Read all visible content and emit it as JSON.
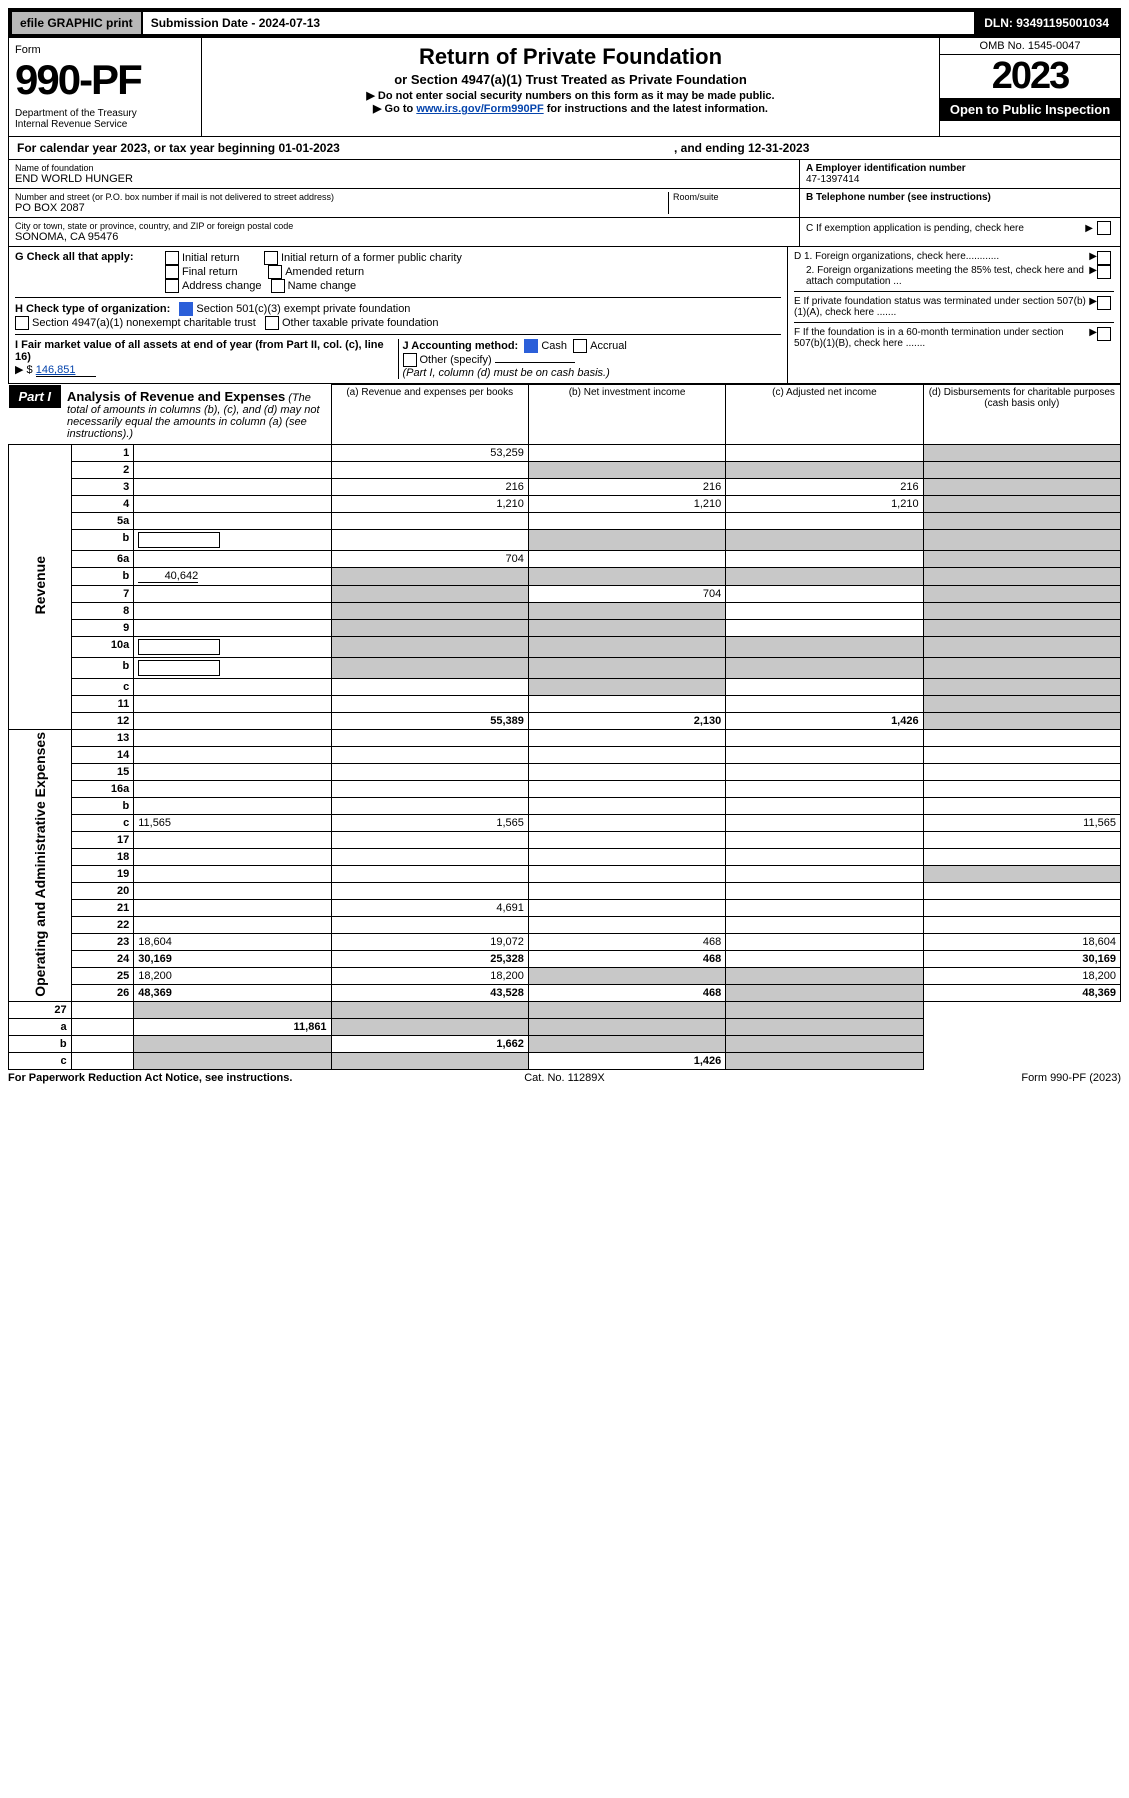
{
  "topbar": {
    "efile": "efile GRAPHIC print",
    "subdate_label": "Submission Date - 2024-07-13",
    "dln": "DLN: 93491195001034"
  },
  "header": {
    "form_label": "Form",
    "form_num": "990-PF",
    "dept": "Department of the Treasury\nInternal Revenue Service",
    "title": "Return of Private Foundation",
    "subtitle": "or Section 4947(a)(1) Trust Treated as Private Foundation",
    "note1": "▶ Do not enter social security numbers on this form as it may be made public.",
    "note2_pre": "▶ Go to ",
    "note2_link": "www.irs.gov/Form990PF",
    "note2_post": " for instructions and the latest information.",
    "omb": "OMB No. 1545-0047",
    "year": "2023",
    "open_public": "Open to Public Inspection"
  },
  "cal_year": {
    "text1": "For calendar year 2023, or tax year beginning 01-01-2023",
    "text2": ", and ending 12-31-2023"
  },
  "id": {
    "name_label": "Name of foundation",
    "name": "END WORLD HUNGER",
    "addr_label": "Number and street (or P.O. box number if mail is not delivered to street address)",
    "addr": "PO BOX 2087",
    "room_label": "Room/suite",
    "city_label": "City or town, state or province, country, and ZIP or foreign postal code",
    "city": "SONOMA, CA  95476",
    "ein_label": "A Employer identification number",
    "ein": "47-1397414",
    "tel_label": "B Telephone number (see instructions)",
    "c_label": "C If exemption application is pending, check here",
    "d1_label": "D 1. Foreign organizations, check here............",
    "d2_label": "2. Foreign organizations meeting the 85% test, check here and attach computation ...",
    "e_label": "E If private foundation status was terminated under section 507(b)(1)(A), check here .......",
    "f_label": "F If the foundation is in a 60-month termination under section 507(b)(1)(B), check here ......."
  },
  "g": {
    "label": "G Check all that apply:",
    "opts": [
      "Initial return",
      "Final return",
      "Address change",
      "Initial return of a former public charity",
      "Amended return",
      "Name change"
    ]
  },
  "h": {
    "label": "H Check type of organization:",
    "opt1": "Section 501(c)(3) exempt private foundation",
    "opt2": "Section 4947(a)(1) nonexempt charitable trust",
    "opt3": "Other taxable private foundation"
  },
  "i": {
    "label": "I Fair market value of all assets at end of year (from Part II, col. (c), line 16)",
    "value": "146,851"
  },
  "j": {
    "label": "J Accounting method:",
    "cash": "Cash",
    "accrual": "Accrual",
    "other": "Other (specify)",
    "note": "(Part I, column (d) must be on cash basis.)"
  },
  "part1": {
    "label": "Part I",
    "title": "Analysis of Revenue and Expenses",
    "note": "(The total of amounts in columns (b), (c), and (d) may not necessarily equal the amounts in column (a) (see instructions).)",
    "col_a": "(a) Revenue and expenses per books",
    "col_b": "(b) Net investment income",
    "col_c": "(c) Adjusted net income",
    "col_d": "(d) Disbursements for charitable purposes (cash basis only)"
  },
  "sections": {
    "revenue": "Revenue",
    "expenses": "Operating and Administrative Expenses"
  },
  "rows": [
    {
      "n": "1",
      "d": "",
      "a": "53,259",
      "b": "",
      "c": ""
    },
    {
      "n": "2",
      "d": "",
      "a": "",
      "b": "",
      "c": "",
      "shade_bcd": true
    },
    {
      "n": "3",
      "d": "",
      "a": "216",
      "b": "216",
      "c": "216"
    },
    {
      "n": "4",
      "d": "",
      "a": "1,210",
      "b": "1,210",
      "c": "1,210"
    },
    {
      "n": "5a",
      "d": "",
      "a": "",
      "b": "",
      "c": ""
    },
    {
      "n": "b",
      "d": "",
      "a": "",
      "b": "",
      "c": "",
      "shade_bcd": true,
      "inline_box": true
    },
    {
      "n": "6a",
      "d": "",
      "a": "704",
      "b": "",
      "c": "",
      "shade_bcd": false
    },
    {
      "n": "b",
      "d": "",
      "inline_val": "40,642",
      "a": "",
      "b": "",
      "c": "",
      "shade_abcd": true
    },
    {
      "n": "7",
      "d": "",
      "a": "",
      "b": "704",
      "c": "",
      "shade_a": true
    },
    {
      "n": "8",
      "d": "",
      "a": "",
      "b": "",
      "c": "",
      "shade_ab": true
    },
    {
      "n": "9",
      "d": "",
      "a": "",
      "b": "",
      "c": "",
      "shade_ab": true
    },
    {
      "n": "10a",
      "d": "",
      "a": "",
      "b": "",
      "c": "",
      "shade_abcd": true,
      "inline_box": true
    },
    {
      "n": "b",
      "d": "",
      "a": "",
      "b": "",
      "c": "",
      "shade_abcd": true,
      "inline_box": true
    },
    {
      "n": "c",
      "d": "",
      "a": "",
      "b": "",
      "c": "",
      "shade_b": true
    },
    {
      "n": "11",
      "d": "",
      "a": "",
      "b": "",
      "c": ""
    },
    {
      "n": "12",
      "d": "",
      "a": "55,389",
      "b": "2,130",
      "c": "1,426",
      "bold": true
    }
  ],
  "exp_rows": [
    {
      "n": "13",
      "d": "",
      "a": "",
      "b": "",
      "c": ""
    },
    {
      "n": "14",
      "d": "",
      "a": "",
      "b": "",
      "c": ""
    },
    {
      "n": "15",
      "d": "",
      "a": "",
      "b": "",
      "c": ""
    },
    {
      "n": "16a",
      "d": "",
      "a": "",
      "b": "",
      "c": ""
    },
    {
      "n": "b",
      "d": "",
      "a": "",
      "b": "",
      "c": ""
    },
    {
      "n": "c",
      "d": "11,565",
      "a": "1,565",
      "b": "",
      "c": ""
    },
    {
      "n": "17",
      "d": "",
      "a": "",
      "b": "",
      "c": ""
    },
    {
      "n": "18",
      "d": "",
      "a": "",
      "b": "",
      "c": ""
    },
    {
      "n": "19",
      "d": "",
      "a": "",
      "b": "",
      "c": "",
      "shade_d": true
    },
    {
      "n": "20",
      "d": "",
      "a": "",
      "b": "",
      "c": ""
    },
    {
      "n": "21",
      "d": "",
      "a": "4,691",
      "b": "",
      "c": ""
    },
    {
      "n": "22",
      "d": "",
      "a": "",
      "b": "",
      "c": ""
    },
    {
      "n": "23",
      "d": "18,604",
      "a": "19,072",
      "b": "468",
      "c": ""
    },
    {
      "n": "24",
      "d": "30,169",
      "a": "25,328",
      "b": "468",
      "c": "",
      "bold": true
    },
    {
      "n": "25",
      "d": "18,200",
      "a": "18,200",
      "b": "",
      "c": "",
      "shade_bc": true
    },
    {
      "n": "26",
      "d": "48,369",
      "a": "43,528",
      "b": "468",
      "c": "",
      "bold": true,
      "shade_c": true
    }
  ],
  "net_rows": [
    {
      "n": "27",
      "d": "",
      "a": "",
      "b": "",
      "c": "",
      "shade_abcd": true
    },
    {
      "n": "a",
      "d": "",
      "a": "11,861",
      "b": "",
      "c": "",
      "bold": true,
      "shade_bcd": true
    },
    {
      "n": "b",
      "d": "",
      "a": "",
      "b": "1,662",
      "c": "",
      "bold": true,
      "shade_acd": true
    },
    {
      "n": "c",
      "d": "",
      "a": "",
      "b": "",
      "c": "1,426",
      "bold": true,
      "shade_abd": true
    }
  ],
  "footer": {
    "left": "For Paperwork Reduction Act Notice, see instructions.",
    "center": "Cat. No. 11289X",
    "right": "Form 990-PF (2023)"
  }
}
